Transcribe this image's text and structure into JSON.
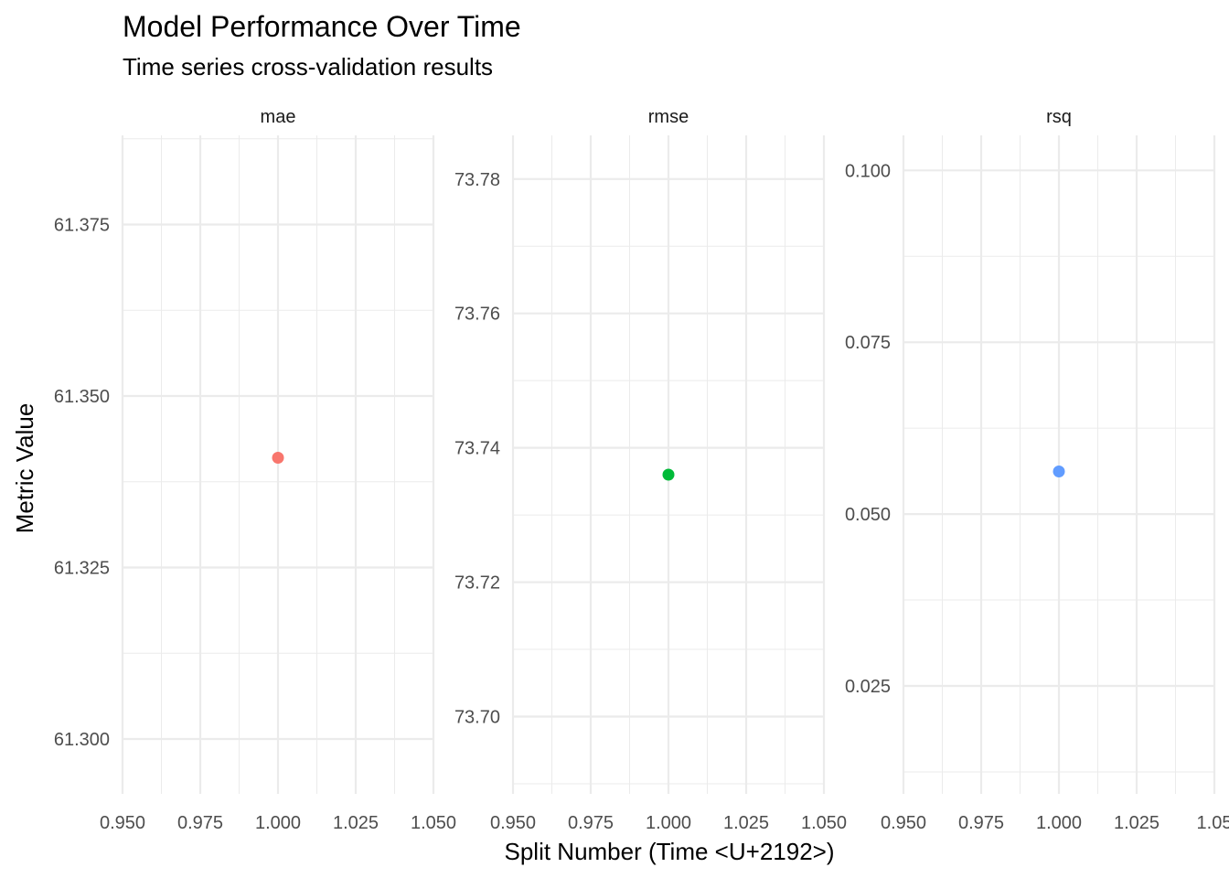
{
  "chart_data": {
    "type": "scatter",
    "title": "Model Performance Over Time",
    "subtitle": "Time series cross-validation results",
    "xlabel": "Split Number (Time <U+2192>)",
    "ylabel": "Metric Value",
    "grid": true,
    "legend": "none",
    "panels": [
      {
        "name": "mae",
        "color": "#F8766D",
        "x_ticks": [
          "0.950",
          "0.975",
          "1.000",
          "1.025",
          "1.050"
        ],
        "y_ticks": [
          "61.300",
          "61.325",
          "61.350",
          "61.375"
        ],
        "xlim": [
          0.95,
          1.05
        ],
        "ylim": [
          61.292,
          61.388
        ],
        "points": [
          {
            "x": 1.0,
            "y": 61.341
          }
        ]
      },
      {
        "name": "rmse",
        "color": "#00BA38",
        "x_ticks": [
          "0.950",
          "0.975",
          "1.000",
          "1.025",
          "1.050"
        ],
        "y_ticks": [
          "73.70",
          "73.72",
          "73.74",
          "73.76",
          "73.78"
        ],
        "xlim": [
          0.95,
          1.05
        ],
        "ylim": [
          73.6885,
          73.7865
        ],
        "points": [
          {
            "x": 1.0,
            "y": 73.736
          }
        ]
      },
      {
        "name": "rsq",
        "color": "#619CFF",
        "x_ticks": [
          "0.950",
          "0.975",
          "1.000",
          "1.025",
          "1.05"
        ],
        "y_ticks": [
          "0.025",
          "0.050",
          "0.075",
          "0.100"
        ],
        "xlim": [
          0.95,
          1.05
        ],
        "ylim": [
          0.0093,
          0.1051
        ],
        "points": [
          {
            "x": 1.0,
            "y": 0.0562
          }
        ]
      }
    ]
  }
}
